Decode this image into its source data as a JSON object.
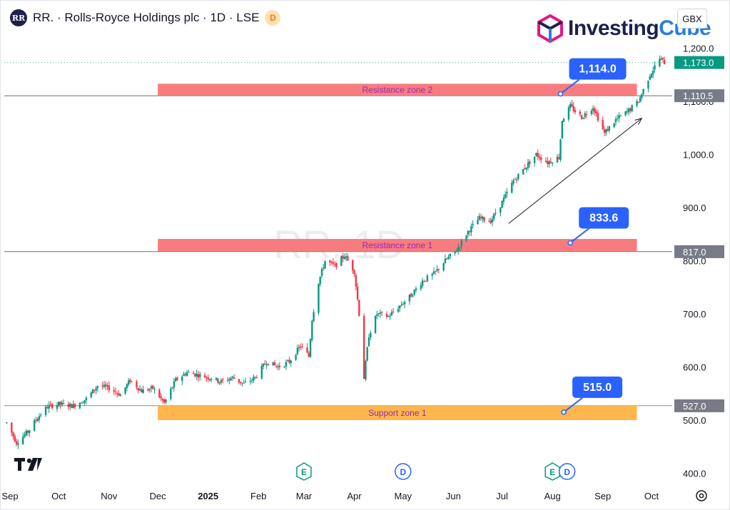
{
  "header": {
    "symbol_badge": "RR",
    "title": "RR. · Rolls-Royce Holdings plc · 1D · LSE",
    "delay_badge": "D",
    "currency": "GBX"
  },
  "brand": {
    "name_part1": "Investing",
    "name_part2": "Cube"
  },
  "watermark": "RR, 1D",
  "colors": {
    "up": "#089981",
    "down": "#f23645",
    "resistance": "#f77c80",
    "support": "#ffb74d",
    "callout": "#2962ff",
    "last_price": "#089981",
    "zone_text": "#9c27b0"
  },
  "chart_data": {
    "type": "candlestick",
    "title": "RR. · Rolls-Royce Holdings plc · 1D · LSE",
    "y_axis": {
      "ticks": [
        400.0,
        500.0,
        600.0,
        700.0,
        800.0,
        900.0,
        1000.0,
        1100.0,
        1200.0
      ],
      "tick_labels": [
        "400.0",
        "500.0",
        "600.0",
        "700.0",
        "800.0",
        "900.0",
        "1,000.0",
        "1,100.0",
        "1,200.0"
      ]
    },
    "x_axis": {
      "labels": [
        {
          "text": "Sep",
          "date": "2024-09-01"
        },
        {
          "text": "Oct",
          "date": "2024-10-01"
        },
        {
          "text": "Nov",
          "date": "2024-11-01"
        },
        {
          "text": "Dec",
          "date": "2024-12-01"
        },
        {
          "text": "2025",
          "date": "2025-01-01",
          "bold": true
        },
        {
          "text": "Feb",
          "date": "2025-02-01"
        },
        {
          "text": "Mar",
          "date": "2025-03-01"
        },
        {
          "text": "Apr",
          "date": "2025-04-01"
        },
        {
          "text": "May",
          "date": "2025-05-01"
        },
        {
          "text": "Jun",
          "date": "2025-06-01"
        },
        {
          "text": "Jul",
          "date": "2025-07-01"
        },
        {
          "text": "Aug",
          "date": "2025-08-01"
        },
        {
          "text": "Sep",
          "date": "2025-09-01"
        },
        {
          "text": "Oct",
          "date": "2025-10-01"
        }
      ]
    },
    "price_path": [
      [
        "2024-08-30",
        495
      ],
      [
        "2024-09-05",
        458
      ],
      [
        "2024-09-12",
        478
      ],
      [
        "2024-09-18",
        505
      ],
      [
        "2024-09-24",
        525
      ],
      [
        "2024-10-01",
        530
      ],
      [
        "2024-10-10",
        527
      ],
      [
        "2024-10-18",
        540
      ],
      [
        "2024-10-25",
        565
      ],
      [
        "2024-11-01",
        560
      ],
      [
        "2024-11-08",
        548
      ],
      [
        "2024-11-14",
        575
      ],
      [
        "2024-11-21",
        555
      ],
      [
        "2024-11-28",
        560
      ],
      [
        "2024-12-05",
        532
      ],
      [
        "2024-12-12",
        575
      ],
      [
        "2024-12-19",
        590
      ],
      [
        "2025-01-02",
        580
      ],
      [
        "2025-01-09",
        572
      ],
      [
        "2025-01-16",
        580
      ],
      [
        "2025-01-23",
        568
      ],
      [
        "2025-01-30",
        580
      ],
      [
        "2025-02-06",
        610
      ],
      [
        "2025-02-13",
        600
      ],
      [
        "2025-02-20",
        610
      ],
      [
        "2025-02-27",
        640
      ],
      [
        "2025-03-04",
        620
      ],
      [
        "2025-03-06",
        690
      ],
      [
        "2025-03-10",
        760
      ],
      [
        "2025-03-14",
        800
      ],
      [
        "2025-03-20",
        790
      ],
      [
        "2025-03-26",
        810
      ],
      [
        "2025-04-01",
        780
      ],
      [
        "2025-04-04",
        700
      ],
      [
        "2025-04-07",
        580
      ],
      [
        "2025-04-10",
        660
      ],
      [
        "2025-04-15",
        700
      ],
      [
        "2025-04-22",
        695
      ],
      [
        "2025-04-29",
        715
      ],
      [
        "2025-05-06",
        735
      ],
      [
        "2025-05-13",
        762
      ],
      [
        "2025-05-20",
        775
      ],
      [
        "2025-05-27",
        800
      ],
      [
        "2025-06-03",
        820
      ],
      [
        "2025-06-10",
        855
      ],
      [
        "2025-06-17",
        880
      ],
      [
        "2025-06-24",
        875
      ],
      [
        "2025-07-01",
        910
      ],
      [
        "2025-07-08",
        950
      ],
      [
        "2025-07-15",
        975
      ],
      [
        "2025-07-22",
        1000
      ],
      [
        "2025-07-29",
        985
      ],
      [
        "2025-08-05",
        995
      ],
      [
        "2025-08-07",
        1065
      ],
      [
        "2025-08-12",
        1090
      ],
      [
        "2025-08-19",
        1070
      ],
      [
        "2025-08-26",
        1090
      ],
      [
        "2025-09-02",
        1040
      ],
      [
        "2025-09-09",
        1065
      ],
      [
        "2025-09-16",
        1080
      ],
      [
        "2025-09-23",
        1100
      ],
      [
        "2025-09-30",
        1150
      ],
      [
        "2025-10-06",
        1180
      ],
      [
        "2025-10-09",
        1173
      ]
    ],
    "zones": [
      {
        "name": "Resistance zone 2",
        "from": "2024-12-01",
        "to": "2025-09-22",
        "low": 1110.5,
        "high": 1133,
        "color": "#f77c80"
      },
      {
        "name": "Resistance zone 1",
        "from": "2024-12-01",
        "to": "2025-09-22",
        "low": 817,
        "high": 841,
        "color": "#f77c80"
      },
      {
        "name": "Support zone 1",
        "from": "2024-12-01",
        "to": "2025-09-22",
        "low": 500,
        "high": 527,
        "color": "#ffb74d"
      }
    ],
    "horizontal_lines": [
      {
        "value": 1110.5,
        "label": "1,110.5"
      },
      {
        "value": 817.0,
        "label": "817.0"
      },
      {
        "value": 527.0,
        "label": "527.0"
      }
    ],
    "last_price": {
      "value": 1173.0,
      "label": "1,173.0"
    },
    "callouts": [
      {
        "label": "1,114.0",
        "date": "2025-08-06",
        "value": 1114.0
      },
      {
        "label": "833.6",
        "date": "2025-08-12",
        "value": 833.6
      },
      {
        "label": "515.0",
        "date": "2025-08-08",
        "value": 515.0
      }
    ],
    "trend_arrow": {
      "from": [
        "2025-07-05",
        870
      ],
      "to": [
        "2025-09-25",
        1068
      ]
    },
    "events": [
      {
        "type": "E",
        "date": "2025-03-01"
      },
      {
        "type": "D",
        "date": "2025-05-01"
      },
      {
        "type": "E",
        "date": "2025-08-01"
      },
      {
        "type": "D",
        "date": "2025-08-10"
      }
    ]
  }
}
